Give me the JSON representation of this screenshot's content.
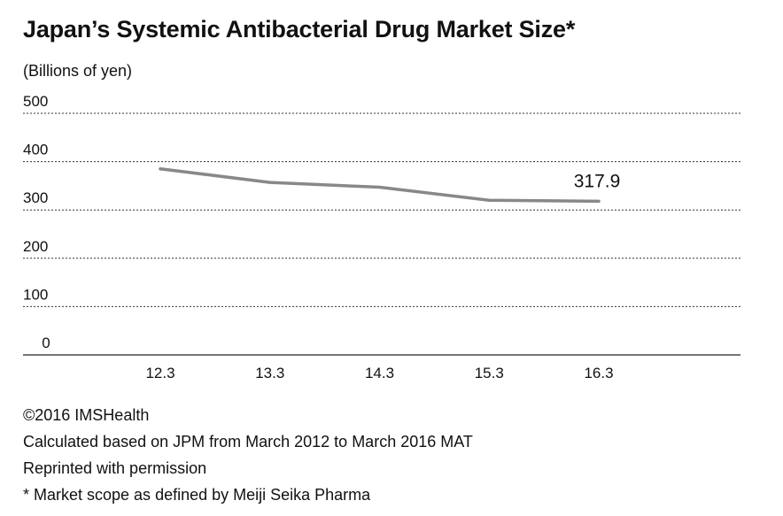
{
  "chart_data": {
    "type": "line",
    "title": "Japan’s Systemic Antibacterial Drug Market Size*",
    "ylabel": "(Billions of yen)",
    "xlabel": "",
    "categories": [
      "12.3",
      "13.3",
      "14.3",
      "15.3",
      "16.3"
    ],
    "series": [
      {
        "name": "Market size",
        "values": [
          385,
          357,
          347,
          320,
          317.9
        ]
      }
    ],
    "ylim": [
      0,
      500
    ],
    "yticks": [
      "0",
      "100",
      "200",
      "300",
      "400",
      "500"
    ],
    "annotations": [
      {
        "category": "16.3",
        "text": "317.9"
      }
    ],
    "grid": true,
    "line_color": "#888888"
  },
  "footer": {
    "line1": "©2016 IMSHealth",
    "line2": "Calculated based on JPM from March 2012 to March 2016 MAT",
    "line3": "Reprinted with permission",
    "line4": "* Market scope as defined by Meiji Seika Pharma"
  }
}
